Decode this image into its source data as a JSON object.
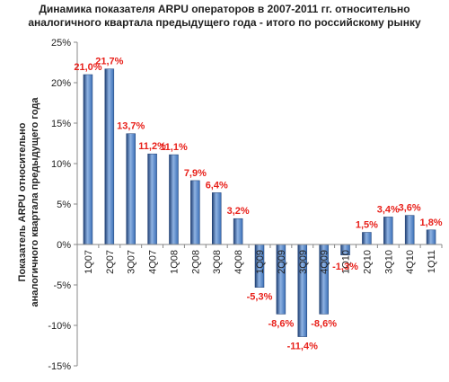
{
  "chart_data": {
    "type": "bar",
    "title": [
      "Динамика показателя ARPU операторов в 2007-2011 гг. относительно",
      "аналогичного квартала предыдущего года - итого по российскому рынку"
    ],
    "ylabel": [
      "Показатель ARPU относительно",
      "аналогичного квартала предыдущего года"
    ],
    "xlabel": "",
    "categories": [
      "1Q07",
      "2Q07",
      "3Q07",
      "4Q07",
      "1Q08",
      "2Q08",
      "3Q08",
      "4Q08",
      "1Q09",
      "2Q09",
      "3Q09",
      "4Q09",
      "1Q10",
      "2Q10",
      "3Q10",
      "4Q10",
      "1Q11"
    ],
    "values": [
      21.0,
      21.7,
      13.7,
      11.2,
      11.1,
      7.9,
      6.4,
      3.2,
      -5.3,
      -8.6,
      -11.4,
      -8.6,
      -1.3,
      1.5,
      3.4,
      3.6,
      1.8
    ],
    "data_labels": [
      "21,0%",
      "21,7%",
      "13,7%",
      "11,2%",
      "11,1%",
      "7,9%",
      "6,4%",
      "3,2%",
      "-5,3%",
      "-8,6%",
      "-11,4%",
      "-8,6%",
      "-1,3%",
      "1,5%",
      "3,4%",
      "3,6%",
      "1,8%"
    ],
    "yticks": [
      25,
      20,
      15,
      10,
      5,
      0,
      -5,
      -10,
      -15
    ],
    "ytick_labels": [
      "25%",
      "20%",
      "15%",
      "10%",
      "5%",
      "0%",
      "-5%",
      "-10%",
      "-15%"
    ],
    "ylim": [
      -15,
      25
    ],
    "grid": false,
    "legend": "none",
    "colors": {
      "bar": "#3b6fb6",
      "bar_dark": "#1f3f73",
      "bar_light": "#8fb3e3",
      "data_label": "#e8201a",
      "axis": "#888888"
    }
  }
}
